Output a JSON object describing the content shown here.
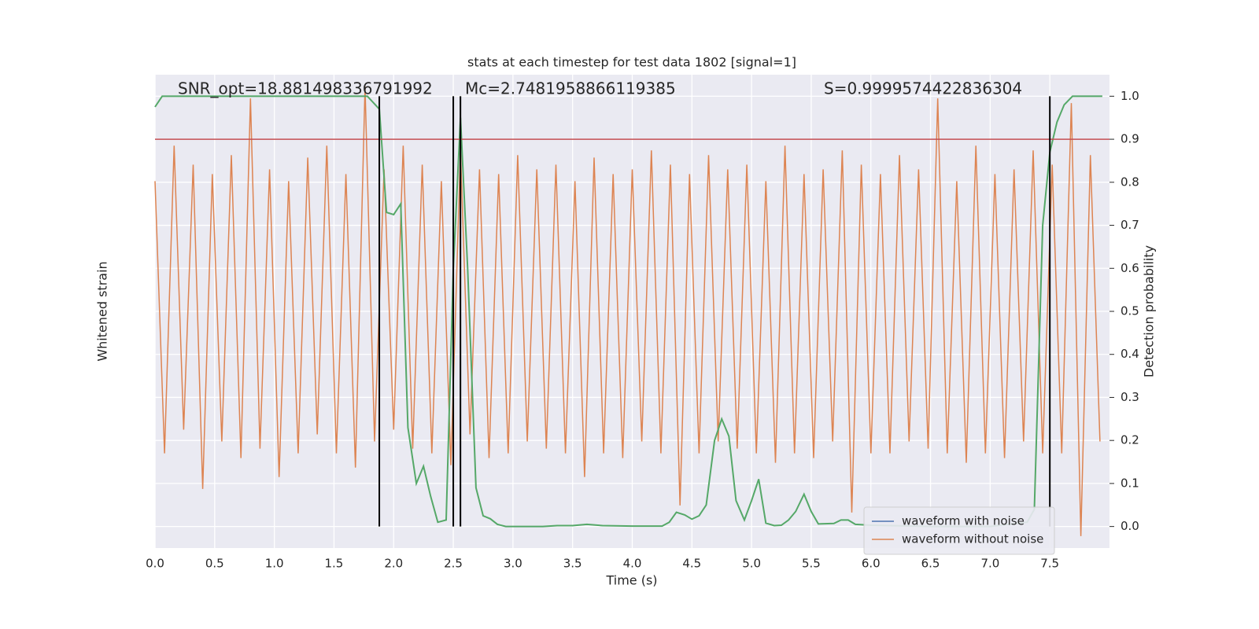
{
  "chart_data": {
    "type": "line",
    "title": "stats at each timestep for test data 1802 [signal=1]",
    "xlabel": "Time (s)",
    "ylabel": "Whitened strain",
    "y2label": "Detection probability",
    "annotations": [
      "SNR_opt=18.881498336791992",
      "Mc=2.7481958866119385",
      "S=0.9999574422836304"
    ],
    "xlim": [
      0,
      8
    ],
    "xticks": [
      {
        "value": 0,
        "label": "0.0"
      },
      0.5,
      {
        "value": 1,
        "label": "1.0"
      },
      1.5,
      {
        "value": 2,
        "label": "2.0"
      },
      2.5,
      {
        "value": 3,
        "label": "3.0"
      },
      3.5,
      {
        "value": 4,
        "label": "4.0"
      },
      4.5,
      {
        "value": 5,
        "label": "5.0"
      },
      5.5,
      {
        "value": 6,
        "label": "6.0"
      },
      6.5,
      {
        "value": 7,
        "label": "7.0"
      },
      7.5
    ],
    "ylim": [
      -1,
      1
    ],
    "y2lim": [
      -0.05,
      1.05
    ],
    "y2ticks": [
      {
        "value": 0,
        "label": "0.0"
      },
      0.1,
      0.2,
      0.3,
      0.4,
      0.5,
      0.6,
      0.7,
      0.8,
      0.9,
      {
        "value": 1,
        "label": "1.0"
      }
    ],
    "grid": true,
    "legend": "lower right",
    "threshold": {
      "value": 0.9,
      "color": "#c44e52"
    },
    "vlines": [
      1.88,
      2.5,
      2.56,
      7.5
    ],
    "series": [
      {
        "name": "waveform with noise",
        "color": "#4c72b0"
      },
      {
        "name": "waveform without noise",
        "color": "#dd8452",
        "x": [
          0,
          0.08,
          0.16,
          0.24,
          0.32,
          0.4,
          0.48,
          0.56,
          0.64,
          0.72,
          0.8,
          0.88,
          0.96,
          1.04,
          1.12,
          1.2,
          1.28,
          1.36,
          1.44,
          1.52,
          1.6,
          1.68,
          1.76,
          1.84,
          1.92,
          2.0,
          2.08,
          2.16,
          2.24,
          2.32,
          2.4,
          2.48,
          2.56,
          2.64,
          2.72,
          2.8,
          2.88,
          2.96,
          3.04,
          3.12,
          3.2,
          3.28,
          3.36,
          3.44,
          3.52,
          3.6,
          3.68,
          3.76,
          3.84,
          3.92,
          4.0,
          4.08,
          4.16,
          4.24,
          4.32,
          4.4,
          4.48,
          4.56,
          4.64,
          4.72,
          4.8,
          4.88,
          4.96,
          5.04,
          5.12,
          5.2,
          5.28,
          5.36,
          5.44,
          5.52,
          5.6,
          5.68,
          5.76,
          5.84,
          5.92,
          6.0,
          6.08,
          6.16,
          6.24,
          6.32,
          6.4,
          6.48,
          6.56,
          6.64,
          6.72,
          6.8,
          6.88,
          6.96,
          7.04,
          7.12,
          7.2,
          7.28,
          7.36,
          7.44,
          7.52,
          7.6,
          7.68,
          7.76,
          7.84,
          7.92
        ],
        "values": [
          0.55,
          -0.6,
          0.7,
          -0.5,
          0.62,
          -0.75,
          0.58,
          -0.55,
          0.66,
          -0.62,
          0.9,
          -0.58,
          0.6,
          -0.7,
          0.55,
          -0.6,
          0.65,
          -0.52,
          0.7,
          -0.6,
          0.58,
          -0.66,
          0.95,
          -0.55,
          0.6,
          -0.5,
          0.7,
          -0.58,
          0.62,
          -0.6,
          0.55,
          -0.65,
          0.68,
          -0.52,
          0.6,
          -0.62,
          0.58,
          -0.6,
          0.66,
          -0.55,
          0.6,
          -0.58,
          0.62,
          -0.6,
          0.55,
          -0.7,
          0.65,
          -0.6,
          0.58,
          -0.62,
          0.6,
          -0.55,
          0.68,
          -0.6,
          0.62,
          -0.82,
          0.58,
          -0.6,
          0.66,
          -0.55,
          0.6,
          -0.58,
          0.62,
          -0.6,
          0.55,
          -0.64,
          0.7,
          -0.6,
          0.58,
          -0.62,
          0.6,
          -0.55,
          0.68,
          -0.85,
          0.62,
          -0.6,
          0.58,
          -0.6,
          0.66,
          -0.55,
          0.6,
          -0.58,
          0.9,
          -0.6,
          0.55,
          -0.64,
          0.7,
          -0.6,
          0.58,
          -0.62,
          0.6,
          -0.55,
          0.68,
          -0.6,
          0.62,
          -0.6,
          0.88,
          -0.95,
          0.66,
          -0.55
        ]
      },
      {
        "color": "#55a868",
        "axis": "y2",
        "x": [
          0,
          0.06,
          0.25,
          0.5,
          1.0,
          1.5,
          1.78,
          1.88,
          1.94,
          2.0,
          2.06,
          2.12,
          2.19,
          2.25,
          2.31,
          2.37,
          2.44,
          2.5,
          2.56,
          2.62,
          2.69,
          2.75,
          2.81,
          2.87,
          2.94,
          3.0,
          3.25,
          3.37,
          3.5,
          3.62,
          3.75,
          4.0,
          4.25,
          4.31,
          4.37,
          4.44,
          4.5,
          4.56,
          4.62,
          4.69,
          4.75,
          4.81,
          4.87,
          4.94,
          5.0,
          5.06,
          5.12,
          5.19,
          5.25,
          5.31,
          5.37,
          5.44,
          5.5,
          5.56,
          5.69,
          5.75,
          5.81,
          5.87,
          6.0,
          6.5,
          7.0,
          7.31,
          7.37,
          7.44,
          7.5,
          7.56,
          7.62,
          7.69,
          7.75,
          7.87,
          7.94
        ],
        "values": [
          0.975,
          1.0,
          1.0,
          1.0,
          1.0,
          1.0,
          1.0,
          0.97,
          0.73,
          0.725,
          0.75,
          0.23,
          0.1,
          0.14,
          0.07,
          0.01,
          0.015,
          0.6,
          0.95,
          0.6,
          0.09,
          0.025,
          0.018,
          0.005,
          0.0,
          0.0,
          0.0,
          0.002,
          0.002,
          0.005,
          0.002,
          0.001,
          0.001,
          0.01,
          0.033,
          0.027,
          0.017,
          0.025,
          0.05,
          0.2,
          0.25,
          0.21,
          0.06,
          0.015,
          0.06,
          0.11,
          0.008,
          0.002,
          0.003,
          0.015,
          0.035,
          0.075,
          0.035,
          0.006,
          0.007,
          0.015,
          0.015,
          0.005,
          0.003,
          0.0,
          0.0,
          0.01,
          0.04,
          0.7,
          0.87,
          0.94,
          0.98,
          1.0,
          1.0,
          1.0,
          1.0
        ]
      }
    ]
  }
}
